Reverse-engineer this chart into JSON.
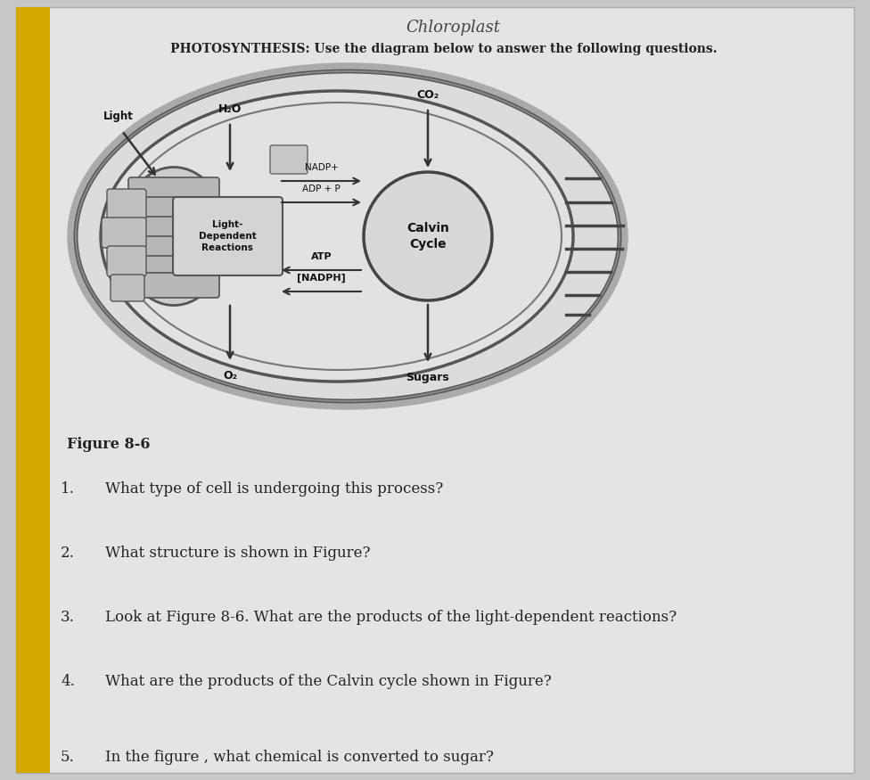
{
  "bg_color": "#c8c8c8",
  "paper_bg": "#e4e4e4",
  "yellow_stripe": "#d4a800",
  "title_handwritten": "Chloroplast",
  "title_main": "PHOTOSYNTHESIS: Use the diagram below to answer the following questions.",
  "figure_label": "Figure 8-6",
  "questions": [
    "1.   What type of cell is undergoing this process?",
    "2.   What structure is shown in Figure?",
    "3.   Look at Figure 8-6. What are the products of the light-dependent reactions?",
    "4.   What are the products of the Calvin cycle shown in Figure?",
    "5.   In the figure , what chemical is converted to sugar?"
  ],
  "text_color": "#222222",
  "diagram_bg": "#dcdcdc",
  "arrow_color": "#333333"
}
